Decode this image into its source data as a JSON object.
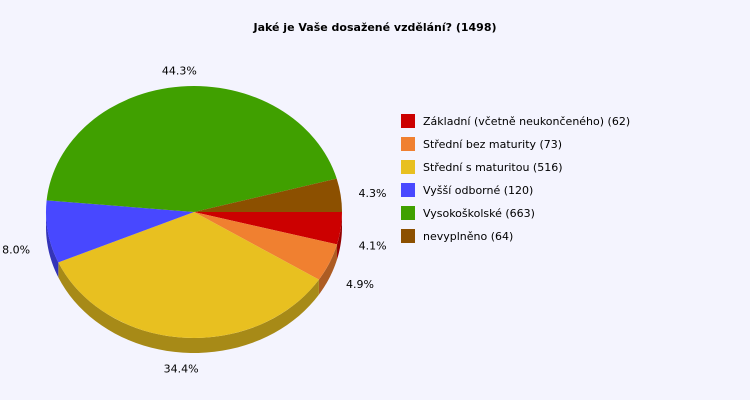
{
  "chart_data": {
    "type": "pie",
    "title": "Jaké je Vaše dosažené vzdělání? (1498)",
    "slices": [
      {
        "label": "Základní (včetně neukončeného) (62)",
        "value": 62,
        "percent_label": "4.1%",
        "color": "#cc0000"
      },
      {
        "label": "Střední bez maturity (73)",
        "value": 73,
        "percent_label": "4.9%",
        "color": "#f08030"
      },
      {
        "label": "Střední s maturitou (516)",
        "value": 516,
        "percent_label": "34.4%",
        "color": "#e8c020"
      },
      {
        "label": "Vyšší odborné (120)",
        "value": 120,
        "percent_label": "8.0%",
        "color": "#4848ff"
      },
      {
        "label": "Vysokoškolské (663)",
        "value": 663,
        "percent_label": "44.3%",
        "color": "#40a000"
      },
      {
        "label": "nevyplněno (64)",
        "value": 64,
        "percent_label": "4.3%",
        "color": "#8c5000"
      }
    ],
    "legend_position": "right",
    "three_d": true
  }
}
